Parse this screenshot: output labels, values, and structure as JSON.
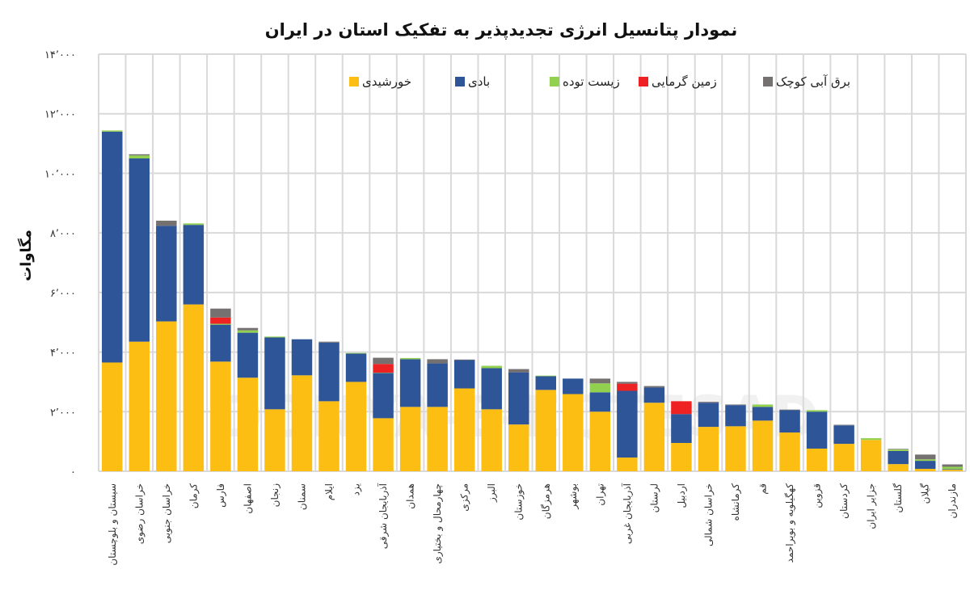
{
  "chart_data": {
    "type": "bar",
    "stacked": true,
    "title": "نمودار پتانسیل انرژی تجدیدپذیر به تفکیک استان در ایران",
    "xlabel": "",
    "ylabel": "مگاوات",
    "ylim": [
      0,
      14000
    ],
    "yticks": [
      0,
      2000,
      4000,
      6000,
      8000,
      10000,
      12000,
      14000
    ],
    "ytick_labels": [
      "۰",
      "۲٬۰۰۰",
      "۴٬۰۰۰",
      "۶٬۰۰۰",
      "۸٬۰۰۰",
      "۱۰٬۰۰۰",
      "۱۲٬۰۰۰",
      "۱۴٬۰۰۰"
    ],
    "grid": true,
    "legend_placement": "top",
    "watermark": "DONYA-E-EQTESAD",
    "categories": [
      "سیستان و بلوچستان",
      "خراسان رضوی",
      "خراسان جنوبی",
      "کرمان",
      "فارس",
      "اصفهان",
      "زنجان",
      "سمنان",
      "ایلام",
      "یزد",
      "آذربایجان شرقی",
      "همدان",
      "چهارمحال و بختیاری",
      "مرکزی",
      "البرز",
      "خوزستان",
      "هرمزگان",
      "بوشهر",
      "تهران",
      "آذربایجان غربی",
      "لرستان",
      "اردبیل",
      "خراسان شمالی",
      "کرمانشاه",
      "قم",
      "کهگیلویه و بویراحمد",
      "قزوین",
      "کردستان",
      "جزایر ایران",
      "گلستان",
      "گیلان",
      "مازندران"
    ],
    "series": [
      {
        "name": "خورشیدی",
        "color": "#FDBE14",
        "values": [
          3650,
          4350,
          5030,
          5600,
          3680,
          3140,
          2080,
          3220,
          2350,
          3000,
          1780,
          2160,
          2160,
          2780,
          2080,
          1570,
          2730,
          2590,
          2000,
          460,
          2300,
          950,
          1490,
          1510,
          1700,
          1300,
          760,
          920,
          1050,
          240,
          80,
          50
        ]
      },
      {
        "name": "بادی",
        "color": "#2E5597",
        "values": [
          7750,
          6150,
          3210,
          2670,
          1240,
          1510,
          2410,
          1210,
          1970,
          950,
          1520,
          1600,
          1460,
          950,
          1380,
          1750,
          460,
          520,
          650,
          2240,
          510,
          970,
          810,
          710,
          460,
          750,
          1240,
          620,
          0,
          440,
          270,
          20
        ]
      },
      {
        "name": "زیست توده",
        "color": "#92D050",
        "values": [
          40,
          100,
          0,
          50,
          30,
          80,
          30,
          0,
          0,
          20,
          10,
          40,
          0,
          0,
          80,
          0,
          20,
          0,
          300,
          0,
          0,
          0,
          0,
          0,
          80,
          0,
          50,
          0,
          60,
          50,
          50,
          80
        ]
      },
      {
        "name": "زمین گرمایی",
        "color": "#EE2222",
        "values": [
          0,
          0,
          0,
          0,
          210,
          0,
          0,
          0,
          0,
          0,
          290,
          0,
          0,
          0,
          0,
          0,
          0,
          0,
          0,
          240,
          0,
          430,
          0,
          0,
          0,
          0,
          0,
          0,
          0,
          0,
          0,
          0
        ]
      },
      {
        "name": "برق آبی کوچک",
        "color": "#767171",
        "values": [
          0,
          40,
          170,
          0,
          300,
          80,
          0,
          0,
          30,
          0,
          210,
          0,
          140,
          20,
          0,
          110,
          0,
          0,
          160,
          60,
          50,
          0,
          30,
          20,
          0,
          20,
          0,
          20,
          0,
          20,
          160,
          80
        ]
      }
    ]
  }
}
